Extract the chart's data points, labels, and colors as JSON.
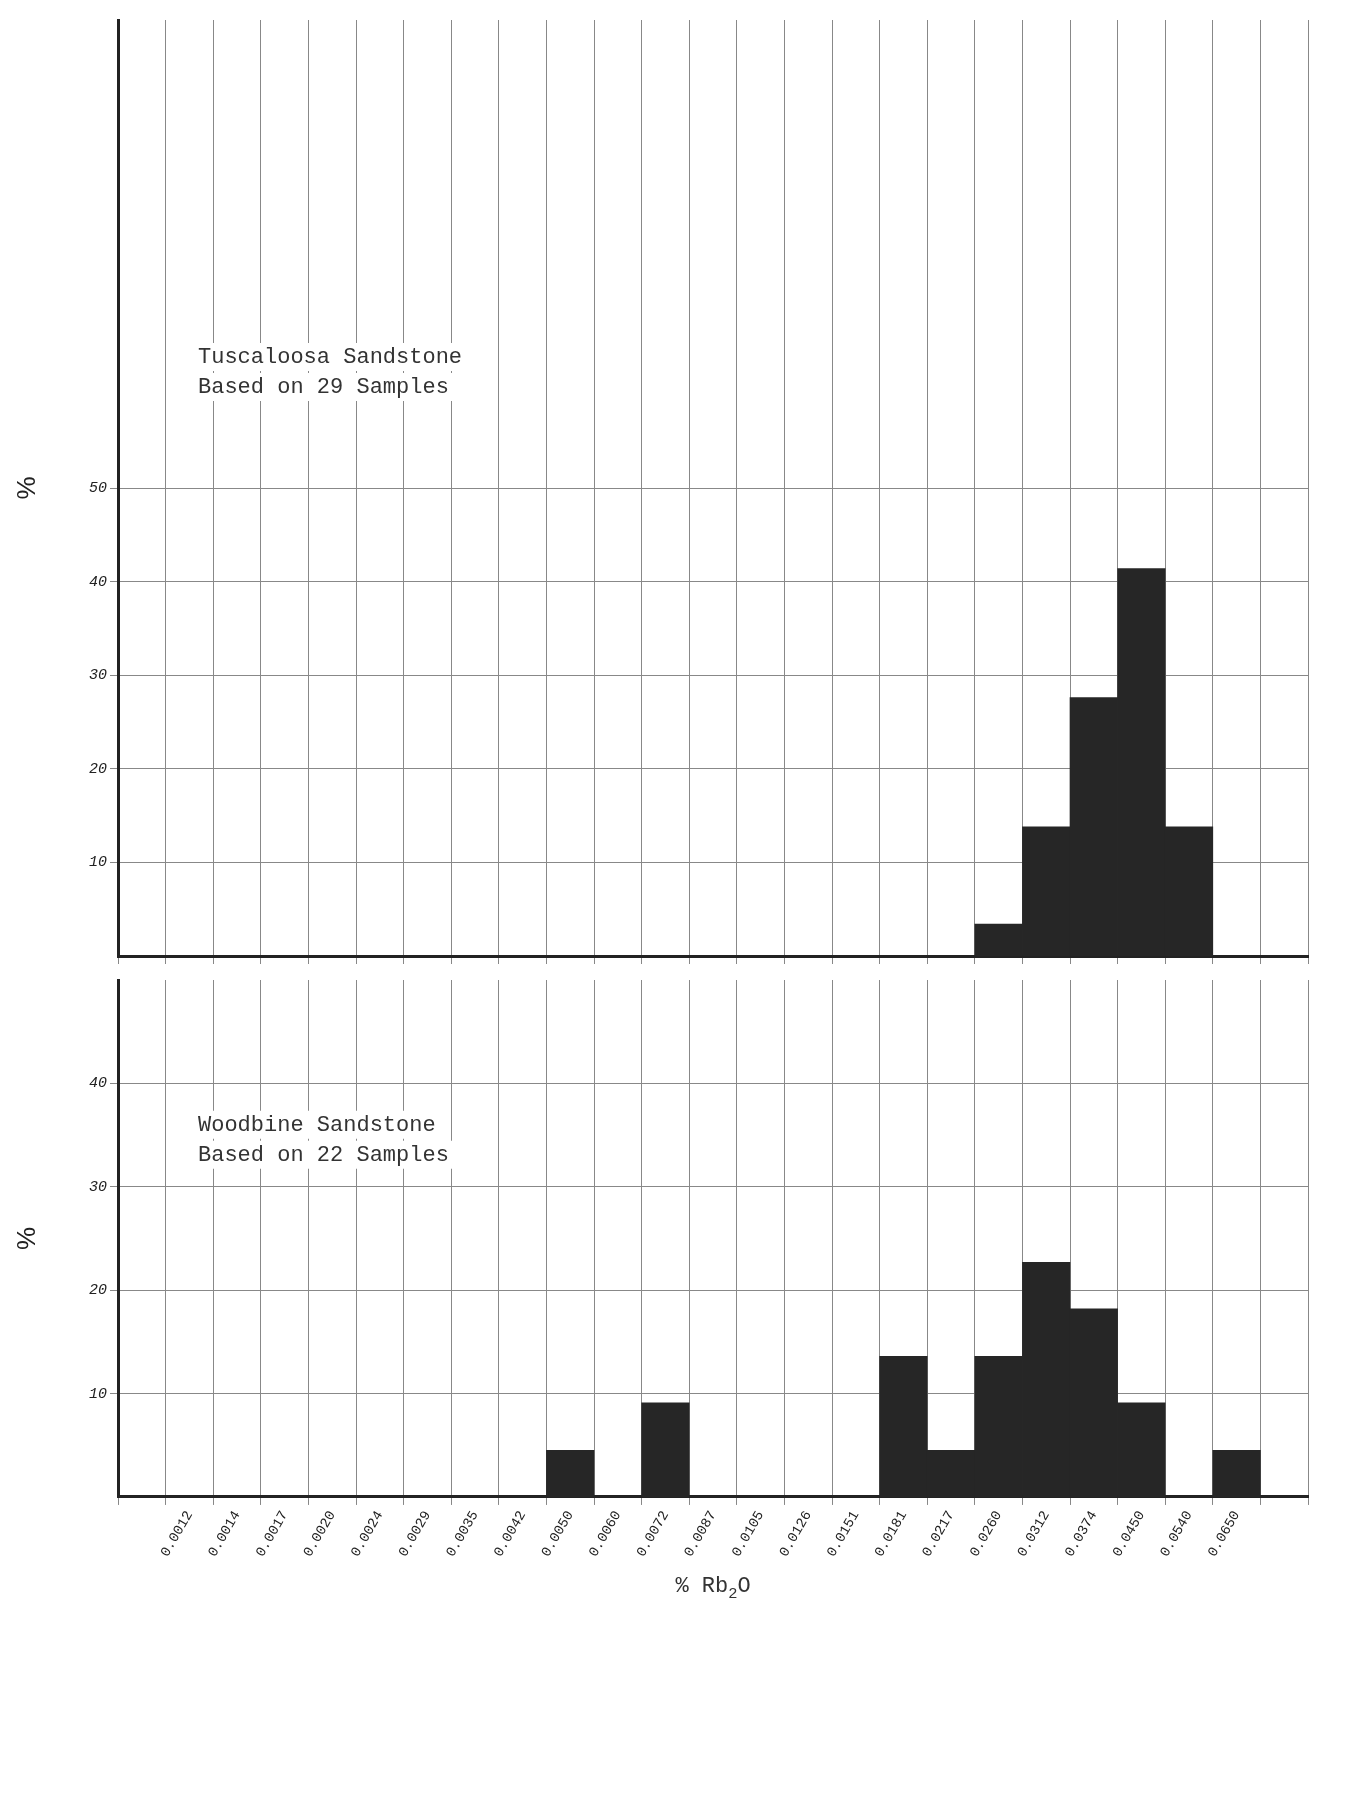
{
  "chart_data": [
    {
      "type": "bar",
      "ylabel": "%",
      "categories": [
        null,
        "0.0012",
        "0.0014",
        "0.0017",
        "0.0020",
        "0.0024",
        "0.0029",
        "0.0035",
        "0.0042",
        "0.0050",
        "0.0060",
        "0.0072",
        "0.0087",
        "0.0105",
        "0.0126",
        "0.0151",
        "0.0181",
        "0.0217",
        "0.0260",
        "0.0312",
        "0.0374",
        "0.0450",
        "0.0540",
        "0.0650",
        null
      ],
      "series": [
        {
          "color": "#262626",
          "values": [
            0,
            0,
            0,
            0,
            0,
            0,
            0,
            0,
            0,
            0,
            0,
            0,
            0,
            0,
            0,
            0,
            0,
            0,
            3.4,
            13.8,
            27.6,
            41.4,
            13.8,
            0,
            0
          ]
        }
      ],
      "ylim": [
        0,
        100
      ],
      "yticks": [
        10,
        20,
        30,
        40,
        50
      ],
      "grid": true,
      "tick_labels": "y",
      "annotations": [
        "Tuscaloosa Sandstone",
        "Based on 29 Samples"
      ]
    },
    {
      "type": "bar",
      "ylabel": "%",
      "xlabel": "% Rb$_{2}$O",
      "categories": [
        null,
        "0.0012",
        "0.0014",
        "0.0017",
        "0.0020",
        "0.0024",
        "0.0029",
        "0.0035",
        "0.0042",
        "0.0050",
        "0.0060",
        "0.0072",
        "0.0087",
        "0.0105",
        "0.0126",
        "0.0151",
        "0.0181",
        "0.0217",
        "0.0260",
        "0.0312",
        "0.0374",
        "0.0450",
        "0.0540",
        "0.0650",
        null
      ],
      "series": [
        {
          "color": "#262626",
          "values": [
            0,
            0,
            0,
            0,
            0,
            0,
            0,
            0,
            0,
            4.5,
            0,
            9.1,
            0,
            0,
            0,
            0,
            13.6,
            4.5,
            13.6,
            22.7,
            18.2,
            9.1,
            0,
            4.5,
            0
          ]
        }
      ],
      "ylim": [
        0,
        50
      ],
      "yticks": [
        10,
        20,
        30,
        40
      ],
      "grid": true,
      "annotations": [
        "Woodbine Sandstone",
        "Based on 22 Samples"
      ]
    }
  ]
}
